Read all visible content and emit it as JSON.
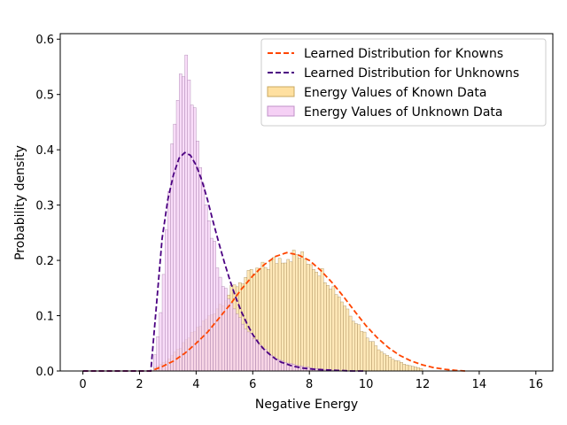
{
  "chart_data": {
    "type": "histogram+line",
    "title": "",
    "xlabel": "Negative Energy",
    "ylabel": "Probability density",
    "xlim": [
      -0.8,
      16.6
    ],
    "ylim": [
      0,
      0.61
    ],
    "xticks": [
      0,
      2,
      4,
      6,
      8,
      10,
      12,
      14,
      16
    ],
    "yticks": [
      0.0,
      0.1,
      0.2,
      0.3,
      0.4,
      0.5,
      0.6
    ],
    "ytick_labels": [
      "0.0",
      "0.1",
      "0.2",
      "0.3",
      "0.4",
      "0.5",
      "0.6"
    ],
    "bin_width": 0.1,
    "legend_position": "top-right",
    "series": [
      {
        "name": "Learned Distribution for Knowns",
        "kind": "line",
        "style": "dashed",
        "color": "#ff4500",
        "x": [
          0,
          1,
          2,
          2.4,
          2.8,
          3.2,
          3.6,
          4.0,
          4.4,
          4.8,
          5.2,
          5.6,
          6.0,
          6.4,
          6.8,
          7.2,
          7.6,
          8.0,
          8.4,
          8.8,
          9.2,
          9.6,
          10.0,
          10.4,
          10.8,
          11.2,
          11.6,
          12.0,
          12.4,
          12.8,
          13.2,
          13.5
        ],
        "y": [
          0,
          0,
          0,
          0.0,
          0.008,
          0.018,
          0.032,
          0.05,
          0.07,
          0.095,
          0.12,
          0.148,
          0.172,
          0.192,
          0.207,
          0.214,
          0.21,
          0.2,
          0.182,
          0.16,
          0.135,
          0.108,
          0.082,
          0.06,
          0.042,
          0.028,
          0.018,
          0.011,
          0.006,
          0.003,
          0.001,
          0.0
        ]
      },
      {
        "name": "Learned Distribution for Unknowns",
        "kind": "line",
        "style": "dashed",
        "color": "#4b0082",
        "x": [
          0,
          1,
          2,
          2.4,
          2.6,
          2.8,
          3.0,
          3.2,
          3.4,
          3.6,
          3.8,
          4.0,
          4.2,
          4.4,
          4.6,
          4.8,
          5.0,
          5.2,
          5.4,
          5.6,
          5.8,
          6.0,
          6.2,
          6.4,
          6.6,
          6.8,
          7.0,
          7.4,
          7.8,
          8.2,
          8.6,
          9.0,
          9.5,
          10.0
        ],
        "y": [
          0,
          0,
          0,
          0.0,
          0.12,
          0.24,
          0.31,
          0.355,
          0.385,
          0.395,
          0.39,
          0.372,
          0.345,
          0.31,
          0.27,
          0.232,
          0.196,
          0.163,
          0.133,
          0.107,
          0.085,
          0.066,
          0.051,
          0.039,
          0.03,
          0.022,
          0.016,
          0.009,
          0.005,
          0.003,
          0.002,
          0.001,
          0.0,
          0.0
        ]
      },
      {
        "name": "Energy Values of Known Data",
        "kind": "histogram",
        "color": "#ffe0a0",
        "edge_color": "#9a8050",
        "x": [
          2.5,
          3.0,
          3.5,
          4.0,
          4.5,
          5.0,
          5.5,
          6.0,
          6.5,
          7.0,
          7.5,
          8.0,
          8.5,
          9.0,
          9.5,
          10.0,
          10.5,
          11.0,
          11.5,
          12.0
        ],
        "y": [
          0.005,
          0.02,
          0.045,
          0.075,
          0.1,
          0.13,
          0.16,
          0.175,
          0.19,
          0.205,
          0.21,
          0.2,
          0.175,
          0.14,
          0.1,
          0.065,
          0.038,
          0.02,
          0.01,
          0.004
        ]
      },
      {
        "name": "Energy Values of Unknown Data",
        "kind": "histogram",
        "color": "#f5d0f5",
        "edge_color": "#9a70a0",
        "x": [
          2.5,
          2.7,
          2.9,
          3.1,
          3.3,
          3.5,
          3.7,
          3.9,
          4.1,
          4.3,
          4.5,
          4.7,
          4.9,
          5.1,
          5.3,
          5.5,
          5.7,
          5.9,
          6.1,
          6.3,
          6.5,
          6.7,
          6.9,
          7.2,
          7.6,
          8.0,
          8.5,
          9.0
        ],
        "y": [
          0.01,
          0.08,
          0.2,
          0.38,
          0.5,
          0.57,
          0.54,
          0.47,
          0.4,
          0.33,
          0.27,
          0.21,
          0.17,
          0.14,
          0.12,
          0.1,
          0.085,
          0.07,
          0.058,
          0.046,
          0.036,
          0.028,
          0.022,
          0.015,
          0.01,
          0.006,
          0.003,
          0.001
        ]
      }
    ]
  }
}
